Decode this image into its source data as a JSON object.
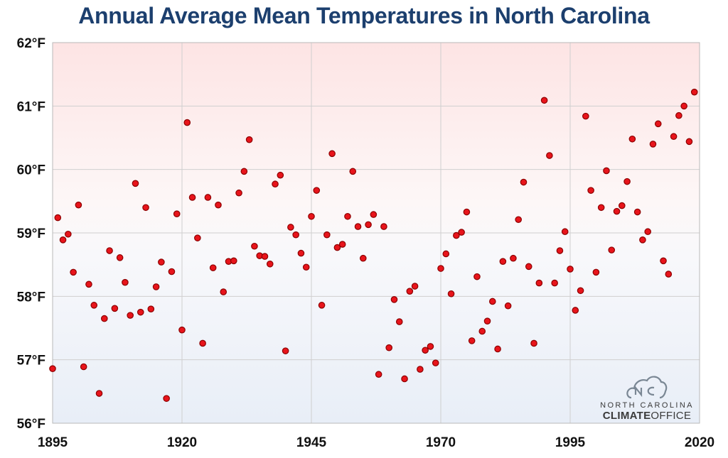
{
  "chart_data": {
    "type": "scatter",
    "title": "Annual Average Mean Temperatures in North Carolina",
    "xlabel": "",
    "ylabel": "",
    "xlim": [
      1895,
      2020
    ],
    "ylim": [
      56,
      62
    ],
    "x_ticks": [
      "1895",
      "1920",
      "1945",
      "1970",
      "1995",
      "2020"
    ],
    "y_ticks": [
      "56°F",
      "57°F",
      "58°F",
      "59°F",
      "60°F",
      "61°F",
      "62°F"
    ],
    "grid": true,
    "legend": "none",
    "marker_color": "#e8141b",
    "marker_edge_color": "#8c0000",
    "series": [
      {
        "x": [
          1895,
          1896,
          1897,
          1898,
          1899,
          1900,
          1901,
          1902,
          1903,
          1904,
          1905,
          1906,
          1907,
          1908,
          1909,
          1910,
          1911,
          1912,
          1913,
          1914,
          1915,
          1916,
          1917,
          1918,
          1919,
          1920,
          1921,
          1922,
          1923,
          1924,
          1925,
          1926,
          1927,
          1928,
          1929,
          1930,
          1931,
          1932,
          1933,
          1934,
          1935,
          1936,
          1937,
          1938,
          1939,
          1940,
          1941,
          1942,
          1943,
          1944,
          1945,
          1946,
          1947,
          1948,
          1949,
          1950,
          1951,
          1952,
          1953,
          1954,
          1955,
          1956,
          1957,
          1958,
          1959,
          1960,
          1961,
          1962,
          1963,
          1964,
          1965,
          1966,
          1967,
          1968,
          1969,
          1970,
          1971,
          1972,
          1973,
          1974,
          1975,
          1976,
          1977,
          1978,
          1979,
          1980,
          1981,
          1982,
          1983,
          1984,
          1985,
          1986,
          1987,
          1988,
          1989,
          1990,
          1991,
          1992,
          1993,
          1994,
          1995,
          1996,
          1997,
          1998,
          1999,
          2000,
          2001,
          2002,
          2003,
          2004,
          2005,
          2006,
          2007,
          2008,
          2009,
          2010,
          2011,
          2012,
          2013,
          2014,
          2015,
          2016,
          2017,
          2018,
          2019
        ],
        "y": [
          56.86,
          59.24,
          58.89,
          58.98,
          58.38,
          59.44,
          56.89,
          58.19,
          57.86,
          56.47,
          57.65,
          58.72,
          57.81,
          58.61,
          58.22,
          57.7,
          59.78,
          57.75,
          59.4,
          57.8,
          58.15,
          58.54,
          56.39,
          58.39,
          59.3,
          57.47,
          60.74,
          59.56,
          58.92,
          57.26,
          59.56,
          58.45,
          59.44,
          58.07,
          58.55,
          58.56,
          59.63,
          59.97,
          60.47,
          58.79,
          58.64,
          58.63,
          58.51,
          59.77,
          59.91,
          57.14,
          59.09,
          58.97,
          58.68,
          58.46,
          59.26,
          59.67,
          57.86,
          58.97,
          60.25,
          58.77,
          58.82,
          59.26,
          59.97,
          59.1,
          58.6,
          59.13,
          59.29,
          56.77,
          59.1,
          57.19,
          57.95,
          57.6,
          56.7,
          58.08,
          58.16,
          56.85,
          57.15,
          57.21,
          56.95,
          58.44,
          58.67,
          58.04,
          58.96,
          59.01,
          59.33,
          57.3,
          58.31,
          57.45,
          57.61,
          57.92,
          57.17,
          58.55,
          57.85,
          58.6,
          59.21,
          59.8,
          58.47,
          57.26,
          58.21,
          61.09,
          60.22,
          58.21,
          58.72,
          59.02,
          58.43,
          57.78,
          58.09,
          60.84,
          59.67,
          58.38,
          59.4,
          59.98,
          58.73,
          59.34,
          59.43,
          59.81,
          60.48,
          59.33,
          58.89,
          59.02,
          60.4,
          60.72,
          58.56,
          58.35,
          60.52,
          60.85,
          61.0,
          60.44,
          61.22
        ]
      }
    ]
  },
  "logo": {
    "line1": "NORTH CAROLINA",
    "line2_bold": "CLIMATE",
    "line2_light": "OFFICE",
    "icon": "nc-cloud-logo-icon"
  }
}
